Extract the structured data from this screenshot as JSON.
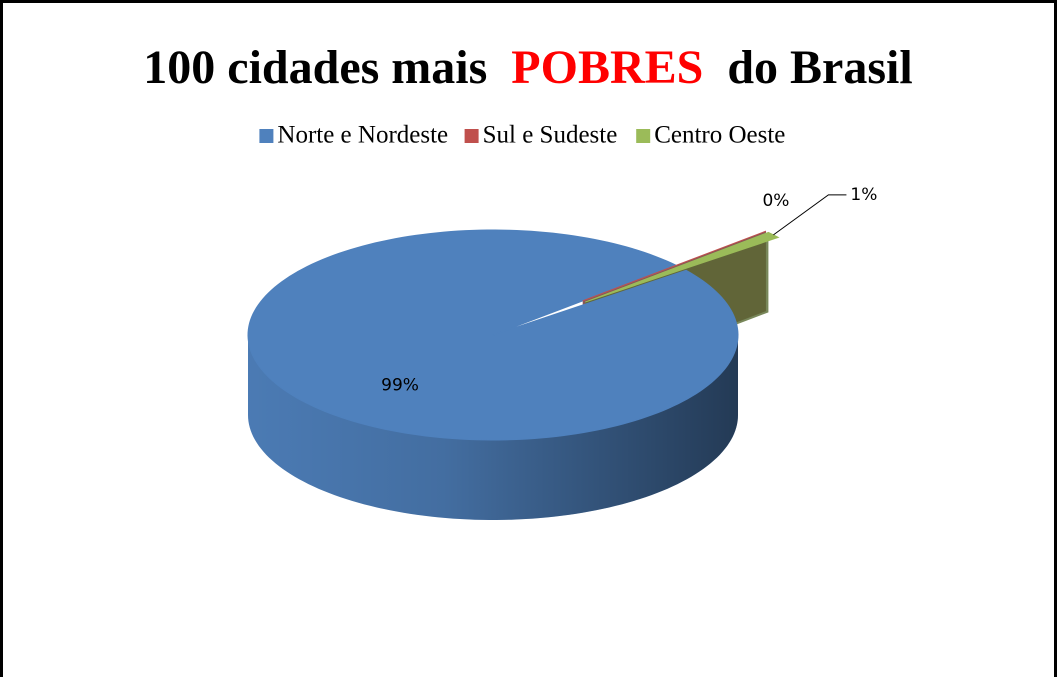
{
  "chart_data": {
    "type": "pie",
    "title": [
      {
        "text": "100 cidades mais",
        "color": "#000000"
      },
      {
        "text": "POBRES",
        "color": "#ff0000"
      },
      {
        "text": "do Brasil",
        "color": "#000000"
      }
    ],
    "categories": [
      "Norte e Nordeste",
      "Sul e Sudeste",
      "Centro Oeste"
    ],
    "values": [
      99,
      0,
      1
    ],
    "value_labels": [
      "99%",
      "0%",
      "1%"
    ],
    "colors": [
      "#4f81bd",
      "#c0504d",
      "#9bbb59"
    ],
    "explode": [
      0,
      1,
      1
    ],
    "three_d": true,
    "legend": "top"
  }
}
